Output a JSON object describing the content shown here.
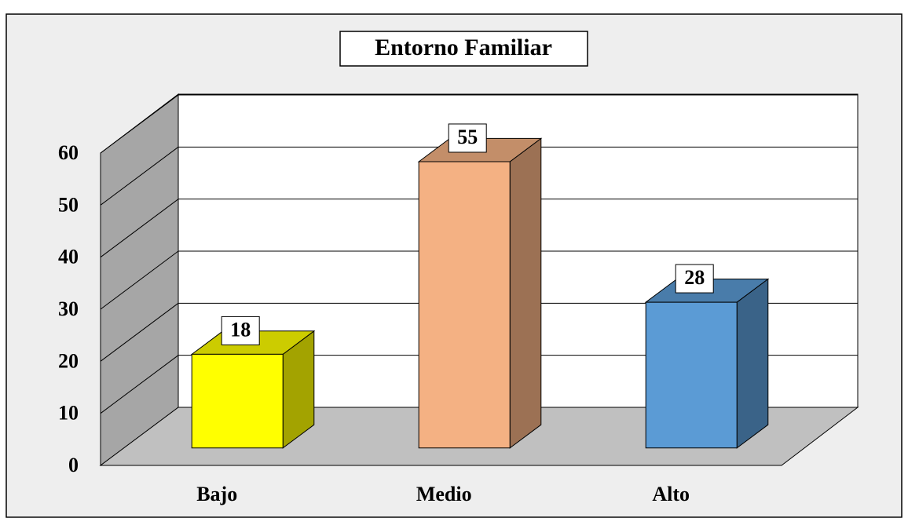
{
  "chart_data": {
    "type": "bar3d",
    "title": "Entorno Familiar",
    "categories": [
      "Bajo",
      "Medio",
      "Alto"
    ],
    "values": [
      18,
      55,
      28
    ],
    "colors": [
      "#ffff00",
      "#f4b183",
      "#5b9bd5"
    ],
    "ylim": [
      0,
      60
    ],
    "yticks": [
      0,
      10,
      20,
      30,
      40,
      50,
      60
    ],
    "grid": true
  }
}
